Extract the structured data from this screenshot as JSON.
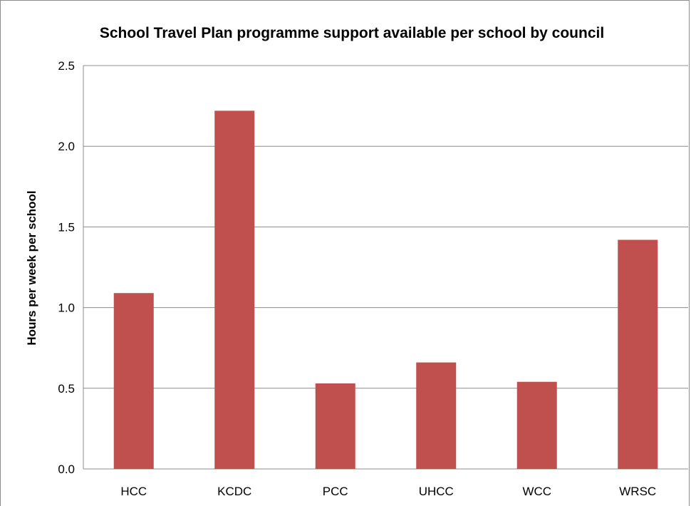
{
  "chart_data": {
    "type": "bar",
    "title": "School Travel Plan programme support available per school by council",
    "xlabel": "",
    "ylabel": "Hours per week per school",
    "categories": [
      "HCC",
      "KCDC",
      "PCC",
      "UHCC",
      "WCC",
      "WRSC"
    ],
    "values": [
      1.09,
      2.22,
      0.53,
      0.66,
      0.54,
      1.42
    ],
    "ylim": [
      0,
      2.5
    ],
    "yticks": [
      "0.0",
      "0.5",
      "1.0",
      "1.5",
      "2.0",
      "2.5"
    ],
    "grid": true,
    "legend": "none",
    "bar_color": "#c0504d",
    "grid_color": "#8c8c8c"
  }
}
